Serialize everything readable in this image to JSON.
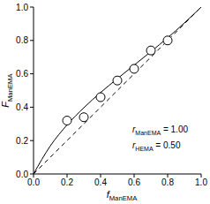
{
  "chart_data": {
    "type": "line",
    "xlabel": [
      "f",
      "ManEMA"
    ],
    "ylabel": [
      "F",
      "ManEMA"
    ],
    "annotations": [
      [
        "r",
        "ManEMA",
        " = 1.00"
      ],
      [
        "r",
        "HEMA",
        " = 0.50"
      ]
    ],
    "xlim": [
      0,
      1
    ],
    "ylim": [
      0,
      1
    ],
    "xticks": [
      {
        "value": 0,
        "label": "0.0"
      },
      {
        "value": 0.2,
        "label": "0.2"
      },
      {
        "value": 0.4,
        "label": "0.4"
      },
      {
        "value": 0.6,
        "label": "0.6"
      },
      {
        "value": 0.8,
        "label": "0.8"
      },
      {
        "value": 1,
        "label": "1.0"
      }
    ],
    "yticks": [
      {
        "value": 0,
        "label": "0.0"
      },
      {
        "value": 0.2,
        "label": "0.2"
      },
      {
        "value": 0.4,
        "label": "0.4"
      },
      {
        "value": 0.6,
        "label": "0.6"
      },
      {
        "value": 0.8,
        "label": "0.8"
      },
      {
        "value": 1,
        "label": "1.0"
      }
    ],
    "grid": false,
    "series": [
      {
        "type": "line",
        "line_style": "solid",
        "color": "#000000",
        "x": [
          0,
          0.1,
          0.2,
          0.3,
          0.4,
          0.5,
          0.6,
          0.7,
          0.8,
          0.9,
          1
        ],
        "values": [
          0,
          0.168,
          0.294,
          0.397,
          0.488,
          0.571,
          0.652,
          0.733,
          0.816,
          0.905,
          1
        ]
      },
      {
        "type": "line",
        "line_style": "dashed",
        "color": "#000000",
        "x": [
          0,
          1
        ],
        "values": [
          0,
          1
        ]
      },
      {
        "type": "scatter",
        "marker": "circle",
        "color": "#000000",
        "x": [
          0.2,
          0.3,
          0.4,
          0.5,
          0.6,
          0.7,
          0.8
        ],
        "values": [
          0.32,
          0.34,
          0.46,
          0.56,
          0.63,
          0.74,
          0.8
        ]
      }
    ]
  }
}
